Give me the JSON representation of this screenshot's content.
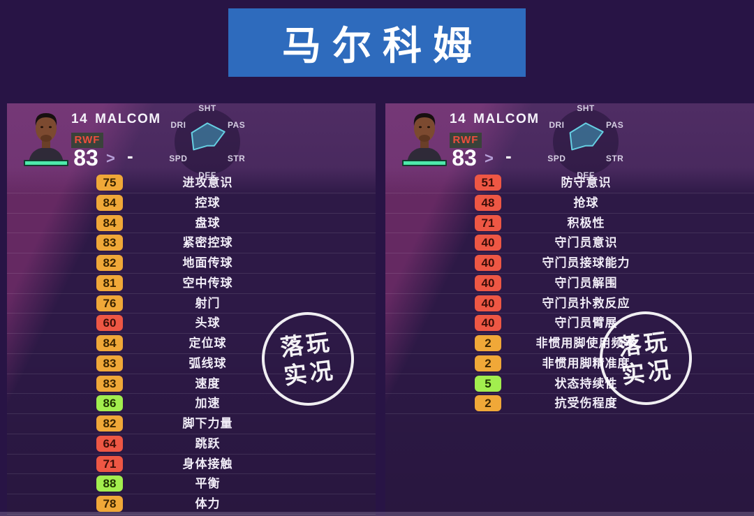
{
  "page": {
    "title_banner": "马尔科姆"
  },
  "colors": {
    "page_bg": "#281445",
    "banner_bg": "#2e6bbd",
    "panel_dark": "#2d1946",
    "panel_light_magenta": "#682a64",
    "badge_orange": "#f0a838",
    "badge_red": "#ee5744",
    "badge_green": "#a2ee4e",
    "position_red": "#ee4f3c",
    "condition_bar_teal": "#4ee9ab",
    "radar_fill": "rgba(62,150,182,0.60)",
    "radar_stroke": "#66cfe2"
  },
  "player": {
    "number": "14",
    "name": "MALCOM",
    "position": "RWF",
    "rating": "83",
    "arrow": ">",
    "change": "-"
  },
  "chart_data": {
    "type": "radar",
    "axes": [
      "SHT",
      "PAS",
      "STR",
      "DEF",
      "SPD",
      "DRI"
    ],
    "values": [
      0.7,
      0.75,
      0.3,
      0.15,
      0.6,
      0.68
    ]
  },
  "panels": [
    {
      "stats": [
        {
          "value": "75",
          "label": "进攻意识",
          "level": "orange"
        },
        {
          "value": "84",
          "label": "控球",
          "level": "orange"
        },
        {
          "value": "84",
          "label": "盘球",
          "level": "orange"
        },
        {
          "value": "83",
          "label": "紧密控球",
          "level": "orange"
        },
        {
          "value": "82",
          "label": "地面传球",
          "level": "orange"
        },
        {
          "value": "81",
          "label": "空中传球",
          "level": "orange"
        },
        {
          "value": "76",
          "label": "射门",
          "level": "orange"
        },
        {
          "value": "60",
          "label": "头球",
          "level": "red"
        },
        {
          "value": "84",
          "label": "定位球",
          "level": "orange"
        },
        {
          "value": "83",
          "label": "弧线球",
          "level": "orange"
        },
        {
          "value": "83",
          "label": "速度",
          "level": "orange"
        },
        {
          "value": "86",
          "label": "加速",
          "level": "green"
        },
        {
          "value": "82",
          "label": "脚下力量",
          "level": "orange"
        },
        {
          "value": "64",
          "label": "跳跃",
          "level": "red"
        },
        {
          "value": "71",
          "label": "身体接触",
          "level": "red"
        },
        {
          "value": "88",
          "label": "平衡",
          "level": "green"
        },
        {
          "value": "78",
          "label": "体力",
          "level": "orange"
        }
      ]
    },
    {
      "stats": [
        {
          "value": "51",
          "label": "防守意识",
          "level": "red"
        },
        {
          "value": "48",
          "label": "抢球",
          "level": "red"
        },
        {
          "value": "71",
          "label": "积极性",
          "level": "red"
        },
        {
          "value": "40",
          "label": "守门员意识",
          "level": "red"
        },
        {
          "value": "40",
          "label": "守门员接球能力",
          "level": "red"
        },
        {
          "value": "40",
          "label": "守门员解围",
          "level": "red"
        },
        {
          "value": "40",
          "label": "守门员扑救反应",
          "level": "red"
        },
        {
          "value": "40",
          "label": "守门员臂展",
          "level": "red"
        },
        {
          "value": "2",
          "label": "非惯用脚使用频率",
          "level": "orange"
        },
        {
          "value": "2",
          "label": "非惯用脚精准度",
          "level": "orange"
        },
        {
          "value": "5",
          "label": "状态持续性",
          "level": "green"
        },
        {
          "value": "2",
          "label": "抗受伤程度",
          "level": "orange"
        }
      ]
    }
  ],
  "watermark": {
    "line1": "落玩",
    "line2": "实况"
  }
}
